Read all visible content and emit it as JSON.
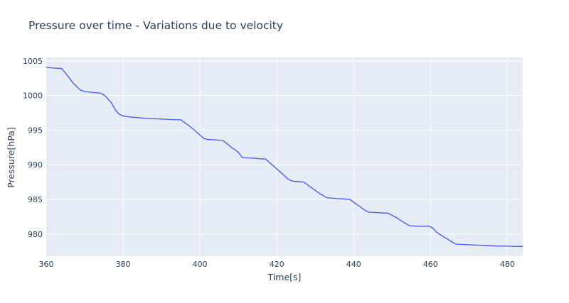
{
  "chart_data": {
    "type": "line",
    "title": "Pressure over time - Variations due to velocity",
    "xlabel": "Time[s]",
    "ylabel": "Pressure[hPa]",
    "xlim": [
      360,
      484
    ],
    "ylim": [
      976.8,
      1005.5
    ],
    "x_ticks": [
      360,
      380,
      400,
      420,
      440,
      460,
      480
    ],
    "y_ticks": [
      980,
      985,
      990,
      995,
      1000,
      1005
    ],
    "grid": true,
    "legend": "none",
    "colors": {
      "plot_bg": "#e5ecf6",
      "grid": "#ffffff",
      "line": "#4e5ef0",
      "text": "#2a3f5f"
    },
    "series": [
      {
        "x": [
          360,
          364,
          365,
          366,
          367,
          368,
          369,
          370,
          372,
          374,
          375,
          376,
          377,
          378,
          379,
          380,
          382,
          384,
          386,
          388,
          390,
          392,
          394,
          395,
          397,
          399,
          401,
          402,
          404,
          406,
          408,
          410,
          411,
          412,
          414,
          416,
          417,
          419,
          421,
          423,
          424,
          425,
          427,
          429,
          431,
          433,
          434,
          436,
          438,
          439,
          441,
          443,
          444,
          446,
          449,
          451,
          453,
          454.5,
          456,
          458,
          459.5,
          460.5,
          461.5,
          462.5,
          464,
          465.5,
          466.5,
          468,
          470,
          472,
          474,
          476,
          478,
          480,
          482,
          484
        ],
        "y": [
          1004.05,
          1003.9,
          1003.25,
          1002.55,
          1001.8,
          1001.25,
          1000.75,
          1000.6,
          1000.45,
          1000.35,
          1000.1,
          999.55,
          998.9,
          997.9,
          997.3,
          997.05,
          996.9,
          996.8,
          996.7,
          996.65,
          996.6,
          996.55,
          996.5,
          996.5,
          995.7,
          994.8,
          993.8,
          993.65,
          993.6,
          993.5,
          992.6,
          991.8,
          991.05,
          991.0,
          990.95,
          990.85,
          990.85,
          989.9,
          988.9,
          987.9,
          987.65,
          987.6,
          987.5,
          986.7,
          985.9,
          985.25,
          985.2,
          985.1,
          985.05,
          985.0,
          984.2,
          983.4,
          983.15,
          983.1,
          983.0,
          982.4,
          981.7,
          981.2,
          981.15,
          981.1,
          981.15,
          980.9,
          980.3,
          979.9,
          979.4,
          978.9,
          978.55,
          978.5,
          978.45,
          978.4,
          978.35,
          978.3,
          978.25,
          978.25,
          978.2,
          978.2
        ]
      }
    ]
  }
}
